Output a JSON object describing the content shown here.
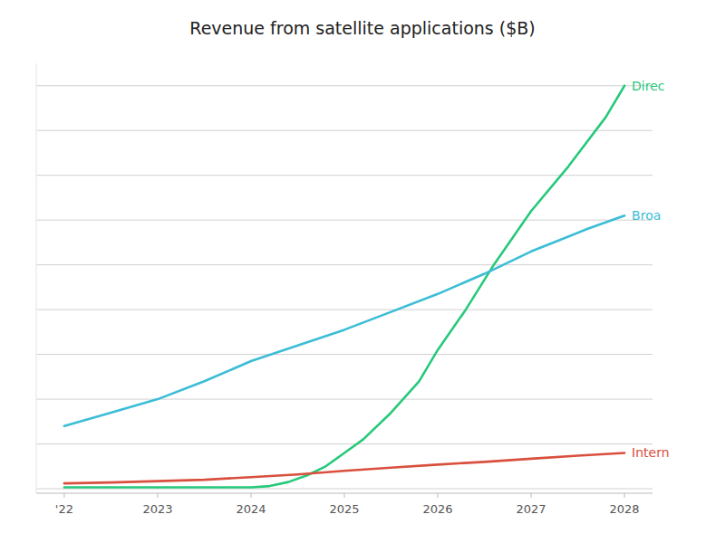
{
  "chart_data": {
    "type": "line",
    "title": "Revenue from satellite applications ($B)",
    "series": [
      {
        "name": "Direc",
        "color": "#27c97a",
        "x": [
          2022,
          2022.25,
          2022.5,
          2023,
          2023.5,
          2024,
          2024.2,
          2024.4,
          2024.6,
          2024.8,
          2025.0,
          2025.2,
          2025.5,
          2025.8,
          2026.0,
          2026.3,
          2026.6,
          2027.0,
          2027.4,
          2027.8,
          2028.0
        ],
        "values": [
          0.03,
          0.03,
          0.03,
          0.03,
          0.03,
          0.03,
          0.06,
          0.15,
          0.3,
          0.5,
          0.8,
          1.1,
          1.7,
          2.4,
          3.1,
          4.0,
          5.0,
          6.2,
          7.2,
          8.3,
          9.0
        ]
      },
      {
        "name": "Broa",
        "color": "#3bbdd6",
        "x": [
          2022,
          2022.5,
          2023,
          2023.5,
          2024,
          2024.5,
          2025,
          2025.5,
          2026,
          2026.5,
          2027,
          2027.3,
          2027.6,
          2028
        ],
        "values": [
          1.4,
          1.7,
          2.0,
          2.4,
          2.85,
          3.2,
          3.55,
          3.95,
          4.35,
          4.8,
          5.3,
          5.55,
          5.8,
          6.1
        ]
      },
      {
        "name": "Intern",
        "color": "#d94f3d",
        "x": [
          2022,
          2022.5,
          2023,
          2023.5,
          2024,
          2024.5,
          2025,
          2025.5,
          2026,
          2026.5,
          2027,
          2027.5,
          2028
        ],
        "values": [
          0.12,
          0.14,
          0.17,
          0.2,
          0.26,
          0.32,
          0.4,
          0.47,
          0.54,
          0.6,
          0.67,
          0.74,
          0.8
        ]
      }
    ],
    "xlim": [
      2021.7,
      2028.3
    ],
    "ylim": [
      -0.1,
      9.5
    ],
    "xticks": [
      {
        "value": 2022,
        "label": "'22"
      },
      2023,
      2024,
      2025,
      2026,
      2027,
      2028
    ],
    "yticks": [
      0,
      1,
      2,
      3,
      4,
      5,
      6,
      7,
      8,
      9
    ],
    "grid": true,
    "tick_labels": "x"
  }
}
